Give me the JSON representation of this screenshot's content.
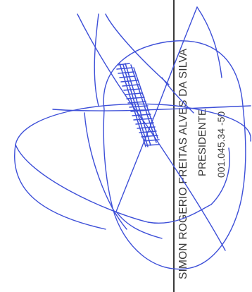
{
  "signature_block": {
    "signer_name": "SIMON ROGERIO FREITAS ALVES DA SILVA",
    "role": "PRESIDENTE",
    "document_number": "001.045.34 -50"
  },
  "colors": {
    "ink": "#3a3a3a",
    "signature_ink": "#3d4fd8",
    "background": "#ffffff"
  }
}
